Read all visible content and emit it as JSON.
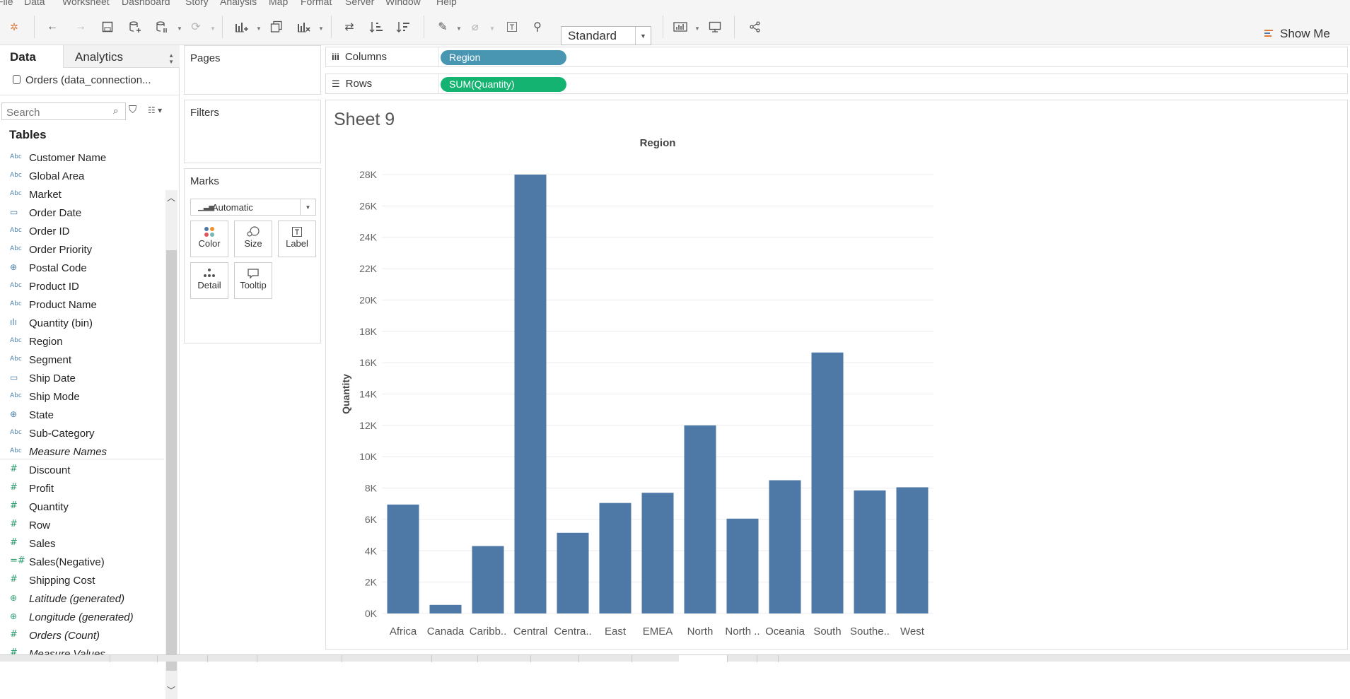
{
  "menu": [
    "File",
    "Data",
    "Worksheet",
    "Dashboard",
    "Story",
    "Analysis",
    "Map",
    "Format",
    "Server",
    "Window",
    "Help"
  ],
  "toolbar": {
    "fit_mode": "Standard",
    "show_me": "Show Me",
    "icons": [
      "tableau-logo-icon",
      "undo-icon",
      "redo-icon",
      "save-icon",
      "new-datasource-icon",
      "pause-updates-icon",
      "refresh-icon",
      "new-worksheet-icon",
      "duplicate-icon",
      "clear-icon",
      "swap-icon",
      "sort-ascending-icon",
      "sort-descending-icon",
      "highlight-icon",
      "group-icon",
      "labels-icon",
      "fix-axes-icon",
      "fit-icon",
      "presentation-icon",
      "share-icon"
    ]
  },
  "data_panel": {
    "tab_data": "Data",
    "tab_analytics": "Analytics",
    "connection": "Orders (data_connection...",
    "search_placeholder": "Search",
    "tables_header": "Tables",
    "dimensions": [
      {
        "icon": "Abc",
        "name": "Customer Name",
        "italic": false
      },
      {
        "icon": "Abc",
        "name": "Global Area",
        "italic": false
      },
      {
        "icon": "Abc",
        "name": "Market",
        "italic": false
      },
      {
        "icon": "date",
        "name": "Order Date",
        "italic": false
      },
      {
        "icon": "Abc",
        "name": "Order ID",
        "italic": false
      },
      {
        "icon": "Abc",
        "name": "Order Priority",
        "italic": false
      },
      {
        "icon": "geo",
        "name": "Postal Code",
        "italic": false
      },
      {
        "icon": "Abc",
        "name": "Product ID",
        "italic": false
      },
      {
        "icon": "Abc",
        "name": "Product Name",
        "italic": false
      },
      {
        "icon": "bin",
        "name": "Quantity (bin)",
        "italic": false
      },
      {
        "icon": "Abc",
        "name": "Region",
        "italic": false
      },
      {
        "icon": "Abc",
        "name": "Segment",
        "italic": false
      },
      {
        "icon": "date",
        "name": "Ship Date",
        "italic": false
      },
      {
        "icon": "Abc",
        "name": "Ship Mode",
        "italic": false
      },
      {
        "icon": "geo",
        "name": "State",
        "italic": false
      },
      {
        "icon": "Abc",
        "name": "Sub-Category",
        "italic": false
      },
      {
        "icon": "Abc",
        "name": "Measure Names",
        "italic": true
      }
    ],
    "measures": [
      {
        "icon": "#",
        "name": "Discount",
        "italic": false
      },
      {
        "icon": "#",
        "name": "Profit",
        "italic": false
      },
      {
        "icon": "#",
        "name": "Quantity",
        "italic": false
      },
      {
        "icon": "#",
        "name": "Row",
        "italic": false
      },
      {
        "icon": "#",
        "name": "Sales",
        "italic": false
      },
      {
        "icon": "=#",
        "name": "Sales(Negative)",
        "italic": false
      },
      {
        "icon": "#",
        "name": "Shipping Cost",
        "italic": false
      },
      {
        "icon": "geo",
        "name": "Latitude (generated)",
        "italic": true
      },
      {
        "icon": "geo",
        "name": "Longitude (generated)",
        "italic": true
      },
      {
        "icon": "#",
        "name": "Orders (Count)",
        "italic": true
      },
      {
        "icon": "#",
        "name": "Measure Values",
        "italic": true
      }
    ]
  },
  "cards": {
    "pages": "Pages",
    "filters": "Filters",
    "marks": "Marks",
    "mark_type": "Automatic",
    "mark_buttons": [
      "Color",
      "Size",
      "Label",
      "Detail",
      "Tooltip"
    ]
  },
  "shelves": {
    "columns_label": "Columns",
    "rows_label": "Rows",
    "columns_pill": "Region",
    "rows_pill": "SUM(Quantity)"
  },
  "sheet": {
    "title": "Sheet 9"
  },
  "chart_data": {
    "type": "bar",
    "title": "Region",
    "xlabel": "",
    "ylabel": "Quantity",
    "categories": [
      "Africa",
      "Canada",
      "Caribb..",
      "Central",
      "Centra..",
      "East",
      "EMEA",
      "North",
      "North ..",
      "Oceania",
      "South",
      "Southe..",
      "West"
    ],
    "values": [
      6950,
      550,
      4300,
      28000,
      5150,
      7050,
      7700,
      12000,
      6050,
      8500,
      16650,
      7850,
      8050
    ],
    "yticks": [
      "0K",
      "2K",
      "4K",
      "6K",
      "8K",
      "10K",
      "12K",
      "14K",
      "16K",
      "18K",
      "20K",
      "22K",
      "24K",
      "26K",
      "28K"
    ],
    "ylim": [
      0,
      28000
    ],
    "grid": true,
    "bar_color": "#4e79a7"
  }
}
